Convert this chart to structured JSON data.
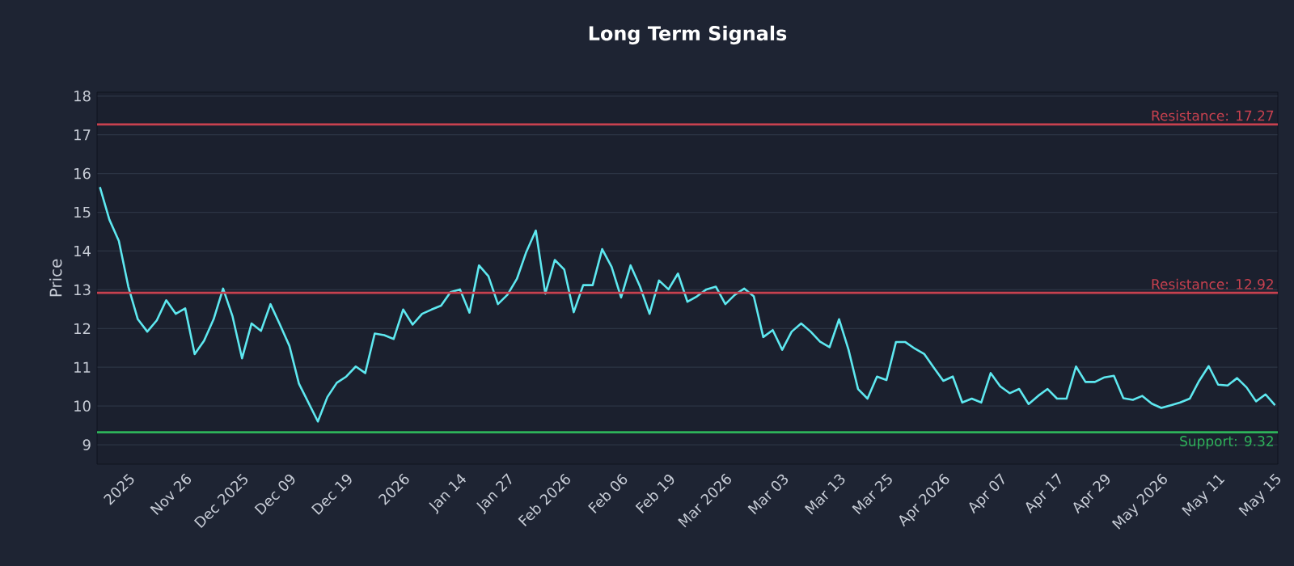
{
  "chart_data": {
    "type": "line",
    "title": "Long Term Signals",
    "ylabel": "Price",
    "categories": [
      null,
      null,
      null,
      "2025",
      null,
      null,
      null,
      null,
      null,
      "Nov 26",
      null,
      null,
      null,
      null,
      null,
      "Dec 2025",
      null,
      null,
      null,
      null,
      "Dec 09",
      null,
      null,
      null,
      null,
      null,
      "Dec 19",
      null,
      null,
      null,
      null,
      null,
      "2026",
      null,
      null,
      null,
      null,
      null,
      "Jan 14",
      null,
      null,
      null,
      null,
      "Jan 27",
      null,
      null,
      null,
      null,
      null,
      "Feb 2026",
      null,
      null,
      null,
      null,
      null,
      "Feb 06",
      null,
      null,
      null,
      null,
      "Feb 19",
      null,
      null,
      null,
      null,
      null,
      "Mar 2026",
      null,
      null,
      null,
      null,
      null,
      "Mar 03",
      null,
      null,
      null,
      null,
      null,
      "Mar 13",
      null,
      null,
      null,
      null,
      "Mar 25",
      null,
      null,
      null,
      null,
      null,
      "Apr 2026",
      null,
      null,
      null,
      null,
      null,
      "Apr 07",
      null,
      null,
      null,
      null,
      null,
      "Apr 17",
      null,
      null,
      null,
      null,
      "Apr 29",
      null,
      null,
      null,
      null,
      null,
      "May 2026",
      null,
      null,
      null,
      null,
      null,
      "May 11",
      null,
      null,
      null,
      null,
      null,
      "May 15"
    ],
    "series": [
      {
        "color": "#5ee8f0",
        "values": [
          15.65,
          14.81,
          14.26,
          13.08,
          12.24,
          11.92,
          12.21,
          12.73,
          12.38,
          12.52,
          11.34,
          11.69,
          12.24,
          13.03,
          12.31,
          11.23,
          12.13,
          11.94,
          12.63,
          12.1,
          11.55,
          10.58,
          10.09,
          9.6,
          10.23,
          10.6,
          10.76,
          11.02,
          10.85,
          11.87,
          11.83,
          11.73,
          12.49,
          12.1,
          12.38,
          12.49,
          12.59,
          12.94,
          13.01,
          12.41,
          13.63,
          13.35,
          12.63,
          12.87,
          13.28,
          13.98,
          14.53,
          12.9,
          13.77,
          13.52,
          12.42,
          13.12,
          13.12,
          14.05,
          13.59,
          12.8,
          13.63,
          13.08,
          12.38,
          13.24,
          13.01,
          13.42,
          12.69,
          12.83,
          13.01,
          13.08,
          12.63,
          12.87,
          13.03,
          12.83,
          11.78,
          11.96,
          11.45,
          11.92,
          12.13,
          11.92,
          11.66,
          11.52,
          12.24,
          11.45,
          10.44,
          10.19,
          10.76,
          10.67,
          11.65,
          11.65,
          11.48,
          11.34,
          10.99,
          10.65,
          10.76,
          10.09,
          10.19,
          10.09,
          10.85,
          10.51,
          10.33,
          10.44,
          10.05,
          10.26,
          10.44,
          10.19,
          10.19,
          11.02,
          10.62,
          10.62,
          10.74,
          10.78,
          10.2,
          10.16,
          10.26,
          10.06,
          9.95,
          10.02,
          10.09,
          10.19,
          10.65,
          11.03,
          10.55,
          10.53,
          10.72,
          10.48,
          10.12,
          10.3,
          10.02
        ]
      }
    ],
    "ylim": [
      8.5,
      18.1
    ],
    "yticks": [
      9,
      10,
      11,
      12,
      13,
      14,
      15,
      16,
      17,
      18
    ],
    "grid": "y",
    "marker": "none",
    "line_style": "solid",
    "ref_lines": [
      {
        "axis": "y",
        "value": 17.27,
        "label": "Resistance: 17.27",
        "color": "#c8414f"
      },
      {
        "axis": "y",
        "value": 12.92,
        "label": "Resistance: 12.92",
        "color": "#c8414f"
      },
      {
        "axis": "y",
        "value": 9.32,
        "label": "Support: 9.32",
        "color": "#2eb35a"
      }
    ]
  }
}
